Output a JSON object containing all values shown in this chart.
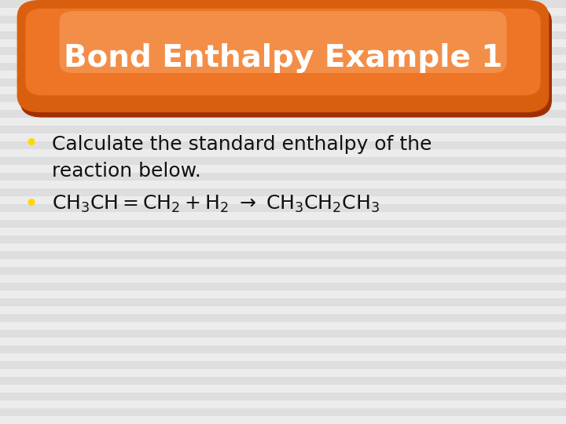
{
  "title": "Bond Enthalpy Example 1",
  "title_color": "#FFFFFF",
  "title_bg_dark": "#A03000",
  "title_bg_mid": "#D95F0E",
  "title_bg_light": "#F07828",
  "title_bg_shine": "#F8A060",
  "background_stripe_light": "#ECECEC",
  "background_stripe_dark": "#DEDEDE",
  "bullet_color": "#FFD700",
  "text_color": "#111111",
  "bullet1_line1": "Calculate the standard enthalpy of the",
  "bullet1_line2": "reaction below.",
  "figsize": [
    7.2,
    5.4
  ],
  "dpi": 100,
  "title_fontsize": 28,
  "body_fontsize": 18
}
